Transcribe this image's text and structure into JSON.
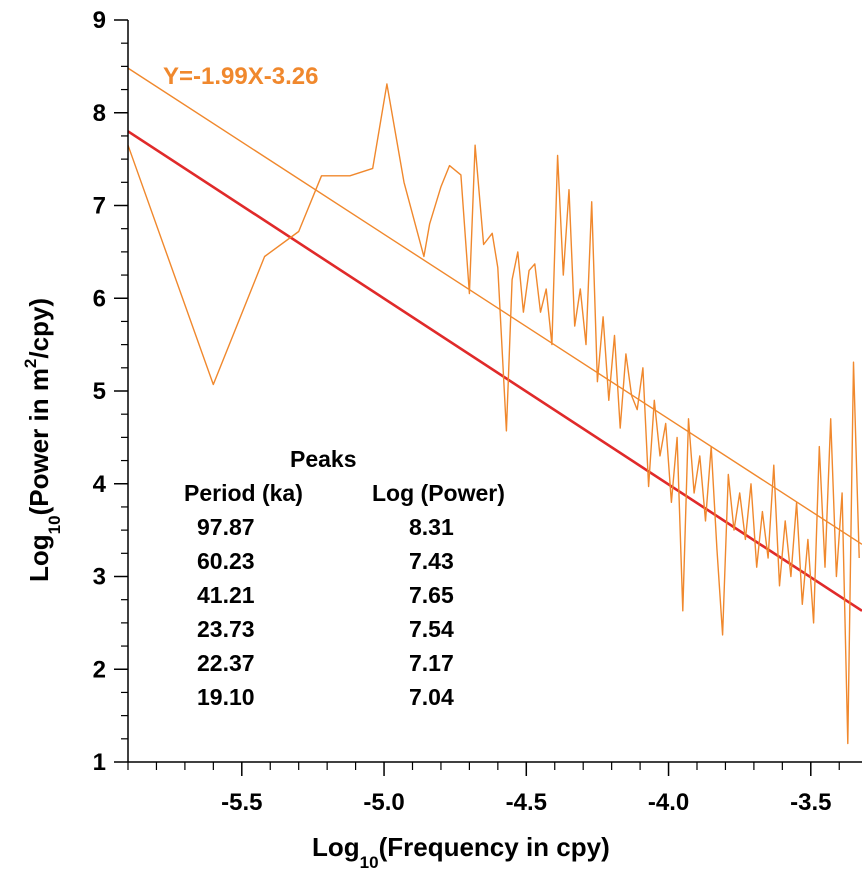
{
  "chart_data": {
    "type": "line",
    "xlabel": {
      "prefix": "Log",
      "sub": "10",
      "rest": "(Frequency in cpy)"
    },
    "ylabel": {
      "prefix": "Log",
      "sub": "10",
      "mid": "(Power in m",
      "sup": "2",
      "rest": "/cpy)"
    },
    "xlim": [
      -5.9,
      -3.32
    ],
    "ylim": [
      1,
      9
    ],
    "x_ticks": [
      -5.5,
      -5.0,
      -4.5,
      -4.0,
      -3.5
    ],
    "x_tick_labels": [
      "-5.5",
      "-5.0",
      "-4.5",
      "-4.0",
      "-3.5"
    ],
    "y_ticks": [
      1,
      2,
      3,
      4,
      5,
      6,
      7,
      8,
      9
    ],
    "y_tick_labels": [
      "1",
      "2",
      "3",
      "4",
      "5",
      "6",
      "7",
      "8",
      "9"
    ],
    "colors": {
      "spectrum": "#f0882d",
      "fit": "#f0882d",
      "confidence": "#e02a2a",
      "axis": "#000000"
    },
    "fit_line": {
      "slope": -1.99,
      "intercept": -3.26,
      "label": "Y=-1.99X-3.26"
    },
    "lower_line": {
      "points": [
        [
          -5.9,
          7.8
        ],
        [
          -3.32,
          2.63
        ]
      ]
    },
    "series": [
      {
        "x": [
          -5.9,
          -5.6,
          -5.42,
          -5.3,
          -5.22,
          -5.12,
          -5.04,
          -4.99,
          -4.93,
          -4.86,
          -4.84,
          -4.8,
          -4.77,
          -4.73,
          -4.7,
          -4.68,
          -4.65,
          -4.62,
          -4.6,
          -4.57,
          -4.55,
          -4.53,
          -4.51,
          -4.49,
          -4.47,
          -4.45,
          -4.43,
          -4.41,
          -4.39,
          -4.37,
          -4.35,
          -4.33,
          -4.31,
          -4.29,
          -4.27,
          -4.25,
          -4.23,
          -4.21,
          -4.19,
          -4.17,
          -4.15,
          -4.13,
          -4.11,
          -4.09,
          -4.07,
          -4.05,
          -4.03,
          -4.01,
          -3.99,
          -3.97,
          -3.95,
          -3.93,
          -3.91,
          -3.89,
          -3.87,
          -3.85,
          -3.83,
          -3.81,
          -3.79,
          -3.77,
          -3.75,
          -3.73,
          -3.71,
          -3.69,
          -3.67,
          -3.65,
          -3.63,
          -3.61,
          -3.59,
          -3.57,
          -3.55,
          -3.53,
          -3.51,
          -3.49,
          -3.47,
          -3.45,
          -3.43,
          -3.41,
          -3.39,
          -3.37,
          -3.35,
          -3.33
        ],
        "y": [
          7.65,
          5.07,
          6.45,
          6.72,
          7.32,
          7.32,
          7.4,
          8.31,
          7.25,
          6.45,
          6.8,
          7.2,
          7.43,
          7.33,
          6.05,
          7.65,
          6.58,
          6.7,
          6.33,
          4.57,
          6.2,
          6.5,
          5.85,
          6.3,
          6.37,
          5.85,
          6.1,
          5.5,
          7.54,
          6.25,
          7.17,
          5.7,
          6.1,
          5.5,
          7.04,
          5.1,
          5.8,
          4.9,
          5.6,
          4.6,
          5.4,
          4.95,
          4.8,
          5.25,
          3.97,
          4.9,
          4.3,
          4.65,
          3.8,
          4.5,
          2.63,
          4.7,
          3.9,
          4.3,
          3.6,
          4.4,
          3.3,
          2.37,
          4.1,
          3.5,
          3.9,
          3.4,
          4.0,
          3.1,
          3.7,
          3.2,
          4.2,
          2.9,
          3.6,
          3.0,
          3.8,
          2.7,
          3.4,
          2.5,
          4.4,
          3.1,
          4.7,
          3.0,
          3.9,
          1.2,
          5.31,
          3.2
        ]
      }
    ],
    "annotations": {
      "title": "Peaks",
      "headers": [
        "Period (ka)",
        "Log (Power)"
      ],
      "rows": [
        [
          "97.87",
          "8.31"
        ],
        [
          "60.23",
          "7.43"
        ],
        [
          "41.21",
          "7.65"
        ],
        [
          "23.73",
          "7.54"
        ],
        [
          "22.37",
          "7.17"
        ],
        [
          "19.10",
          "7.04"
        ]
      ]
    }
  }
}
